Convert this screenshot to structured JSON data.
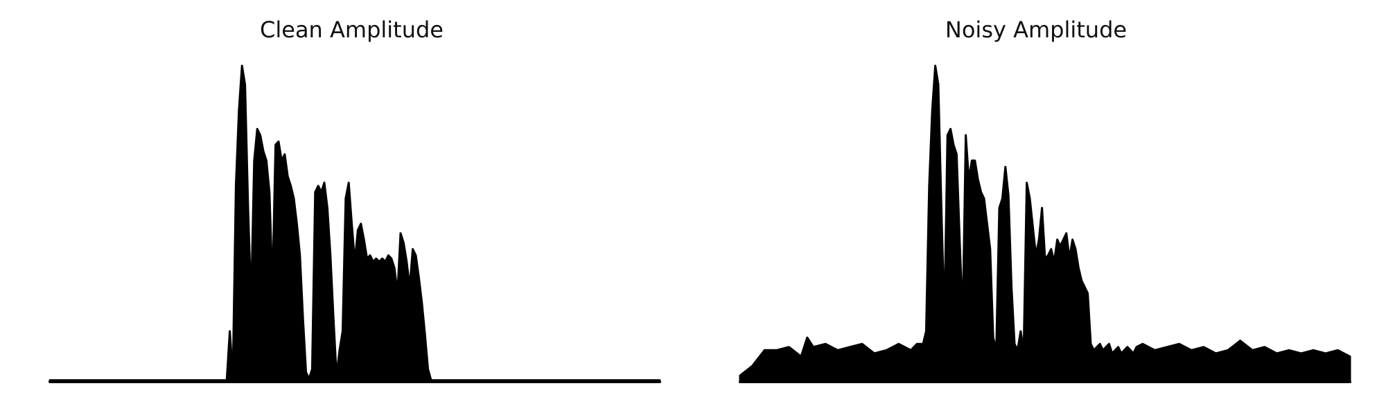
{
  "chart_data": [
    {
      "type": "area",
      "title": "Clean Amplitude",
      "xlabel": "",
      "ylabel": "",
      "axes_visible": false,
      "grid": false,
      "color": "#000000",
      "ylim": [
        0,
        1
      ],
      "envelope": {
        "x": [
          0.0,
          0.29,
          0.295,
          0.3,
          0.305,
          0.31,
          0.315,
          0.32,
          0.325,
          0.33,
          0.335,
          0.34,
          0.345,
          0.35,
          0.355,
          0.36,
          0.365,
          0.37,
          0.375,
          0.38,
          0.385,
          0.39,
          0.395,
          0.4,
          0.405,
          0.41,
          0.415,
          0.42,
          0.425,
          0.43,
          0.435,
          0.44,
          0.445,
          0.45,
          0.455,
          0.46,
          0.465,
          0.47,
          0.475,
          0.48,
          0.485,
          0.49,
          0.495,
          0.5,
          0.505,
          0.51,
          0.515,
          0.52,
          0.525,
          0.53,
          0.535,
          0.54,
          0.545,
          0.55,
          0.555,
          0.56,
          0.565,
          0.57,
          0.575,
          0.58,
          0.585,
          0.59,
          0.595,
          0.6,
          0.605,
          0.61,
          0.615,
          0.62,
          0.625,
          0.63,
          0.635,
          0.64,
          0.645,
          0.65,
          0.655,
          0.66,
          0.665,
          0.67,
          0.675,
          0.68,
          0.685,
          0.69,
          0.695,
          0.7,
          0.705,
          0.71,
          0.715,
          0.72,
          0.725,
          0.73,
          1.0
        ],
        "y": [
          0.005,
          0.005,
          0.16,
          0.02,
          0.62,
          0.86,
          1.0,
          0.94,
          0.55,
          0.25,
          0.7,
          0.8,
          0.78,
          0.73,
          0.7,
          0.6,
          0.3,
          0.75,
          0.76,
          0.7,
          0.72,
          0.65,
          0.62,
          0.58,
          0.5,
          0.4,
          0.2,
          0.03,
          0.01,
          0.04,
          0.6,
          0.62,
          0.6,
          0.63,
          0.55,
          0.4,
          0.2,
          0.02,
          0.1,
          0.16,
          0.58,
          0.63,
          0.5,
          0.38,
          0.48,
          0.5,
          0.45,
          0.39,
          0.4,
          0.38,
          0.39,
          0.38,
          0.39,
          0.38,
          0.4,
          0.39,
          0.36,
          0.28,
          0.47,
          0.44,
          0.38,
          0.3,
          0.42,
          0.4,
          0.33,
          0.25,
          0.15,
          0.04,
          0.005,
          0.005,
          0.005,
          0.005,
          0.005,
          0.005,
          0.005,
          0.005,
          0.005,
          0.005,
          0.005,
          0.005,
          0.005,
          0.005,
          0.005,
          0.005,
          0.005,
          0.005,
          0.005,
          0.005,
          0.005,
          0.005,
          0.005
        ]
      }
    },
    {
      "type": "area",
      "title": "Noisy Amplitude",
      "xlabel": "",
      "ylabel": "",
      "axes_visible": false,
      "grid": false,
      "color": "#000000",
      "ylim": [
        0,
        1
      ],
      "envelope": {
        "x": [
          0.0,
          0.02,
          0.04,
          0.06,
          0.08,
          0.1,
          0.11,
          0.12,
          0.14,
          0.16,
          0.18,
          0.2,
          0.22,
          0.24,
          0.26,
          0.28,
          0.29,
          0.3,
          0.305,
          0.31,
          0.315,
          0.32,
          0.325,
          0.33,
          0.335,
          0.34,
          0.345,
          0.35,
          0.355,
          0.36,
          0.365,
          0.37,
          0.375,
          0.38,
          0.385,
          0.39,
          0.395,
          0.4,
          0.405,
          0.41,
          0.415,
          0.42,
          0.425,
          0.43,
          0.435,
          0.44,
          0.445,
          0.45,
          0.455,
          0.46,
          0.465,
          0.47,
          0.475,
          0.48,
          0.485,
          0.49,
          0.495,
          0.5,
          0.505,
          0.51,
          0.515,
          0.52,
          0.525,
          0.53,
          0.535,
          0.54,
          0.545,
          0.55,
          0.555,
          0.56,
          0.565,
          0.57,
          0.575,
          0.58,
          0.585,
          0.59,
          0.595,
          0.6,
          0.605,
          0.61,
          0.615,
          0.62,
          0.625,
          0.63,
          0.635,
          0.64,
          0.645,
          0.65,
          0.66,
          0.68,
          0.7,
          0.72,
          0.74,
          0.76,
          0.78,
          0.8,
          0.82,
          0.84,
          0.86,
          0.88,
          0.9,
          0.92,
          0.94,
          0.96,
          0.98,
          1.0
        ],
        "y": [
          0.02,
          0.05,
          0.1,
          0.1,
          0.11,
          0.08,
          0.14,
          0.11,
          0.12,
          0.1,
          0.11,
          0.12,
          0.09,
          0.1,
          0.12,
          0.1,
          0.12,
          0.12,
          0.16,
          0.62,
          0.86,
          1.0,
          0.94,
          0.55,
          0.2,
          0.78,
          0.8,
          0.75,
          0.72,
          0.45,
          0.2,
          0.78,
          0.64,
          0.7,
          0.7,
          0.64,
          0.6,
          0.58,
          0.5,
          0.42,
          0.14,
          0.1,
          0.55,
          0.58,
          0.68,
          0.59,
          0.3,
          0.12,
          0.1,
          0.16,
          0.1,
          0.63,
          0.58,
          0.49,
          0.4,
          0.45,
          0.55,
          0.39,
          0.4,
          0.42,
          0.38,
          0.45,
          0.43,
          0.45,
          0.47,
          0.39,
          0.45,
          0.42,
          0.36,
          0.32,
          0.3,
          0.28,
          0.12,
          0.1,
          0.11,
          0.12,
          0.1,
          0.11,
          0.12,
          0.09,
          0.1,
          0.11,
          0.09,
          0.1,
          0.11,
          0.1,
          0.09,
          0.11,
          0.12,
          0.1,
          0.11,
          0.12,
          0.1,
          0.11,
          0.09,
          0.1,
          0.13,
          0.1,
          0.11,
          0.09,
          0.1,
          0.09,
          0.1,
          0.09,
          0.1,
          0.08
        ]
      }
    }
  ]
}
